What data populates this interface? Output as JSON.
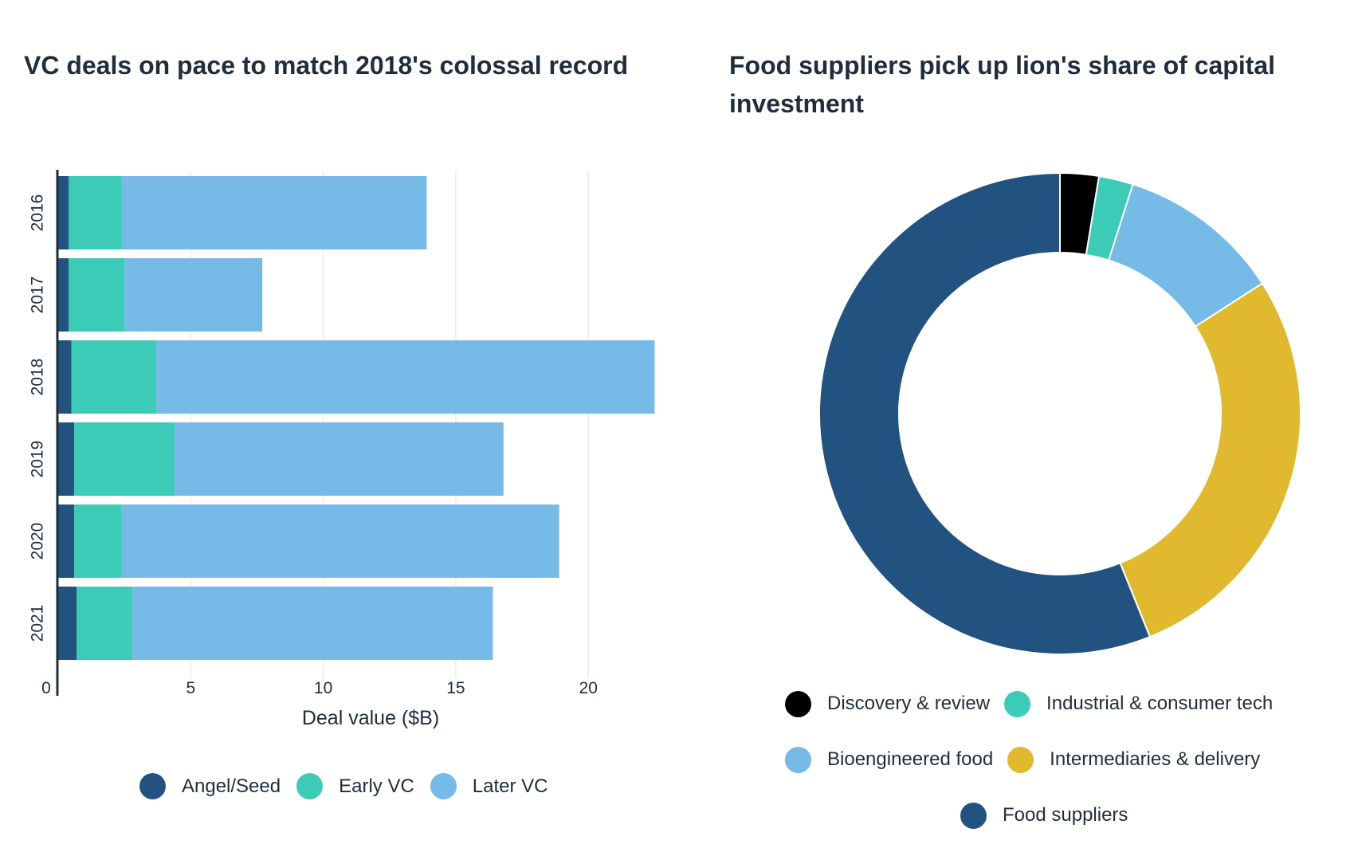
{
  "chart_data": [
    {
      "type": "bar",
      "orientation": "horizontal",
      "stacked": true,
      "title": "VC deals on pace to match 2018's colossal record",
      "xlabel": "Deal value ($B)",
      "ylabel": "",
      "categories": [
        "2016",
        "2017",
        "2018",
        "2019",
        "2020",
        "2021"
      ],
      "x_ticks": [
        0,
        5,
        10,
        15,
        20
      ],
      "xlim": [
        0,
        23
      ],
      "grid": true,
      "legend_position": "bottom",
      "series": [
        {
          "name": "Angel/Seed",
          "color": "#22527f",
          "values": [
            0.4,
            0.4,
            0.5,
            0.6,
            0.6,
            0.7
          ]
        },
        {
          "name": "Early VC",
          "color": "#3ccbb7",
          "values": [
            2.0,
            2.1,
            3.2,
            3.8,
            1.8,
            2.1
          ]
        },
        {
          "name": "Later VC",
          "color": "#76bbe7",
          "values": [
            11.5,
            5.2,
            18.8,
            12.4,
            16.5,
            13.6
          ]
        }
      ]
    },
    {
      "type": "pie",
      "donut": true,
      "title": "Food suppliers pick up lion's share of capital investment",
      "legend_position": "bottom",
      "slices": [
        {
          "name": "Discovery & review",
          "color": "#000000",
          "value": 2.6
        },
        {
          "name": "Industrial & consumer tech",
          "color": "#3ccbb7",
          "value": 2.3
        },
        {
          "name": "Bioengineered food",
          "color": "#76bbe7",
          "value": 11.0
        },
        {
          "name": "Intermediaries & delivery",
          "color": "#e0b92f",
          "value": 28.0
        },
        {
          "name": "Food suppliers",
          "color": "#22527f",
          "value": 56.1
        }
      ]
    }
  ]
}
